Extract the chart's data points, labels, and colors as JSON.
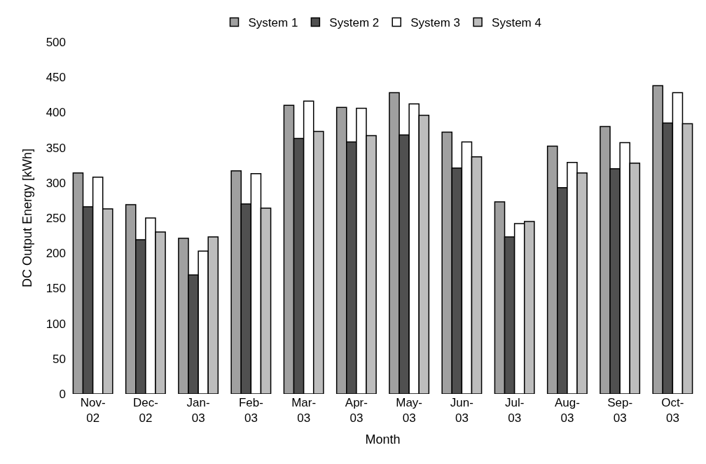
{
  "chart_data": {
    "type": "bar",
    "xlabel": "Month",
    "ylabel": "DC Output Energy [kWh]",
    "categories": [
      "Nov-02",
      "Dec-02",
      "Jan-03",
      "Feb-03",
      "Mar-03",
      "Apr-03",
      "May-03",
      "Jun-03",
      "Jul-03",
      "Aug-03",
      "Sep-03",
      "Oct-03"
    ],
    "series": [
      {
        "name": "System 1",
        "color": "#a0a0a0",
        "values": [
          314,
          269,
          221,
          317,
          410,
          407,
          428,
          372,
          273,
          352,
          380,
          438
        ]
      },
      {
        "name": "System 2",
        "color": "#505050",
        "values": [
          266,
          219,
          169,
          270,
          363,
          358,
          368,
          321,
          223,
          293,
          320,
          385
        ]
      },
      {
        "name": "System 3",
        "color": "#ffffff",
        "values": [
          308,
          250,
          203,
          313,
          416,
          406,
          412,
          358,
          242,
          329,
          357,
          428
        ]
      },
      {
        "name": "System 4",
        "color": "#bdbdbd",
        "values": [
          263,
          230,
          223,
          264,
          373,
          367,
          396,
          337,
          245,
          314,
          328,
          384
        ]
      }
    ],
    "ylim": [
      0,
      500
    ],
    "yticks": [
      0,
      50,
      100,
      150,
      200,
      250,
      300,
      350,
      400,
      450,
      500
    ],
    "grid": false,
    "legend": "top"
  }
}
